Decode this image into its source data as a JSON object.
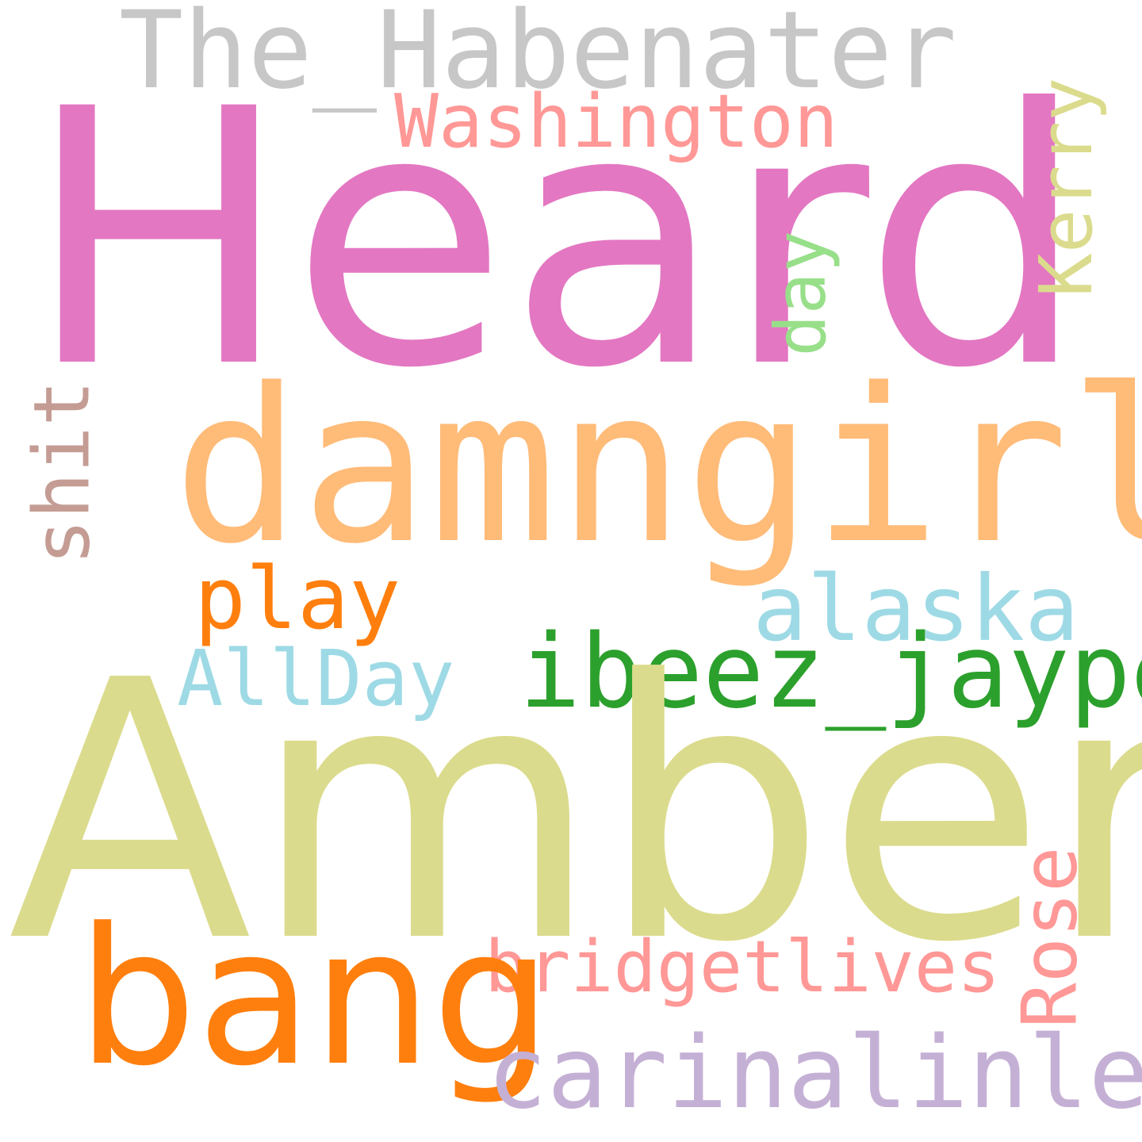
{
  "words": [
    {
      "key": "habenater",
      "text": "The_Habenater",
      "color": "#c7c7c7"
    },
    {
      "key": "heard",
      "text": "Heard",
      "color": "#e377c2"
    },
    {
      "key": "washington",
      "text": "Washington",
      "color": "#ff9896"
    },
    {
      "key": "kerry",
      "text": "Kerry",
      "color": "#dbdb8d"
    },
    {
      "key": "day",
      "text": "day",
      "color": "#98df8a"
    },
    {
      "key": "damngirl",
      "text": "damngirl",
      "color": "#ffbb78"
    },
    {
      "key": "shit",
      "text": "shit",
      "color": "#c49c94"
    },
    {
      "key": "play",
      "text": "play",
      "color": "#ff7f0e"
    },
    {
      "key": "alaska",
      "text": "alaska",
      "color": "#9edae5"
    },
    {
      "key": "allday",
      "text": "AllDay",
      "color": "#9edae5"
    },
    {
      "key": "ibeez",
      "text": "ibeez_jaypee",
      "color": "#2ca02c"
    },
    {
      "key": "amber",
      "text": "Amber",
      "color": "#dbdb8d"
    },
    {
      "key": "rose",
      "text": "Rose",
      "color": "#ff9896"
    },
    {
      "key": "bridgetlives",
      "text": "bridgetlives",
      "color": "#ff9896"
    },
    {
      "key": "bang",
      "text": "bang",
      "color": "#ff7f0e"
    },
    {
      "key": "carinalinley",
      "text": "carinalinley",
      "color": "#c5b0d5"
    }
  ]
}
